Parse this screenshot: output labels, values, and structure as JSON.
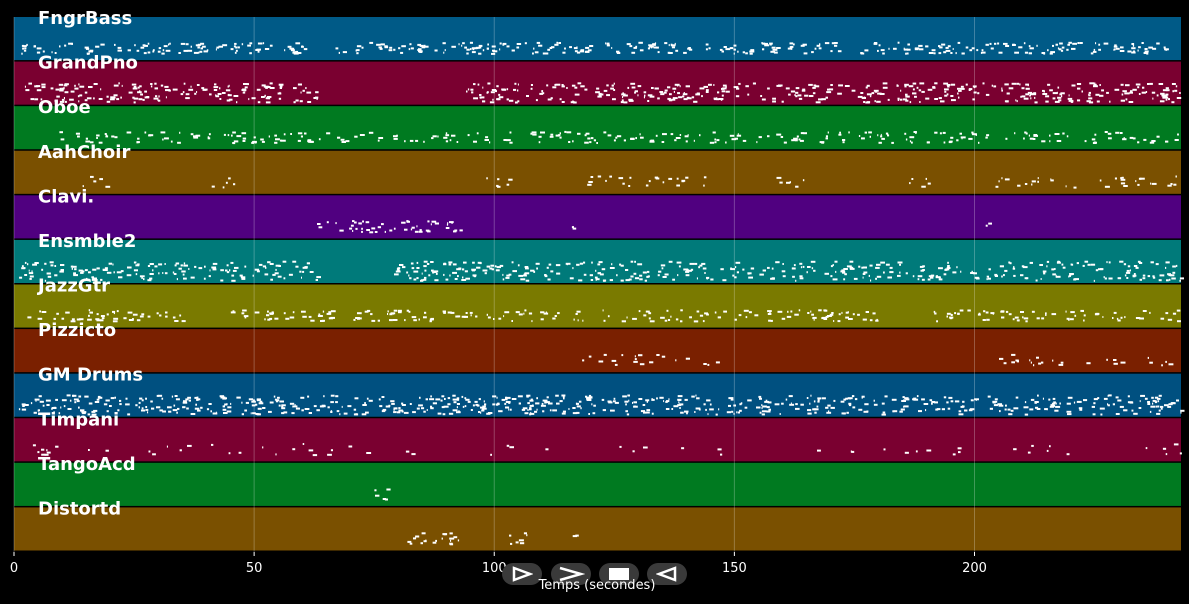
{
  "chart_data": {
    "type": "piano-roll",
    "title": "",
    "xlabel": "Temps (secondes)",
    "ylabel": "",
    "xlim": [
      0,
      243
    ],
    "xticks": [
      0,
      50,
      100,
      150,
      200
    ],
    "grid": true,
    "tracks": [
      {
        "name": "FngrBass",
        "color": "#005a87",
        "density": 1.0,
        "segments": [
          [
            1,
            120
          ],
          [
            123,
            243
          ]
        ]
      },
      {
        "name": "GrandPno",
        "color": "#7a0030",
        "density": 1.6,
        "segments": [
          [
            2,
            63
          ],
          [
            94,
            154
          ],
          [
            155,
            243
          ]
        ]
      },
      {
        "name": "Oboe",
        "color": "#007a20",
        "density": 0.7,
        "segments": [
          [
            9,
            243
          ]
        ]
      },
      {
        "name": "AahChoir",
        "color": "#7a5000",
        "density": 0.5,
        "segments": [
          [
            14,
            20
          ],
          [
            40,
            46
          ],
          [
            98,
            105
          ],
          [
            118,
            145
          ],
          [
            158,
            165
          ],
          [
            186,
            192
          ],
          [
            204,
            242
          ]
        ]
      },
      {
        "name": "Clavi.",
        "color": "#500080",
        "density": 1.0,
        "segments": [
          [
            63,
            93
          ],
          [
            116,
            117
          ],
          [
            202,
            203
          ]
        ]
      },
      {
        "name": "Ensmble2",
        "color": "#007a7a",
        "density": 1.4,
        "segments": [
          [
            1,
            63
          ],
          [
            79,
            243
          ]
        ]
      },
      {
        "name": "JazzGtr",
        "color": "#7a7a00",
        "density": 0.8,
        "segments": [
          [
            2,
            36
          ],
          [
            44,
            181
          ],
          [
            190,
            243
          ]
        ]
      },
      {
        "name": "Pizzicto",
        "color": "#7a2000",
        "density": 0.4,
        "segments": [
          [
            118,
            148
          ],
          [
            205,
            242
          ]
        ]
      },
      {
        "name": "GM Drums",
        "color": "#005080",
        "density": 1.6,
        "segments": [
          [
            1,
            243
          ]
        ]
      },
      {
        "name": "Timpani",
        "color": "#7a0030",
        "density": 0.15,
        "segments": [
          [
            1,
            243
          ]
        ]
      },
      {
        "name": "TangoAcd",
        "color": "#007a20",
        "density": 1.0,
        "segments": [
          [
            75,
            78
          ]
        ]
      },
      {
        "name": "Distortd",
        "color": "#7a5000",
        "density": 1.0,
        "segments": [
          [
            81,
            93
          ],
          [
            103,
            107
          ],
          [
            116,
            117
          ]
        ]
      }
    ]
  },
  "controls": [
    {
      "name": "play-icon",
      "glyph": "play"
    },
    {
      "name": "fast-forward-icon",
      "glyph": "chevron"
    },
    {
      "name": "stop-icon",
      "glyph": "stop"
    },
    {
      "name": "rewind-icon",
      "glyph": "rewind"
    }
  ]
}
